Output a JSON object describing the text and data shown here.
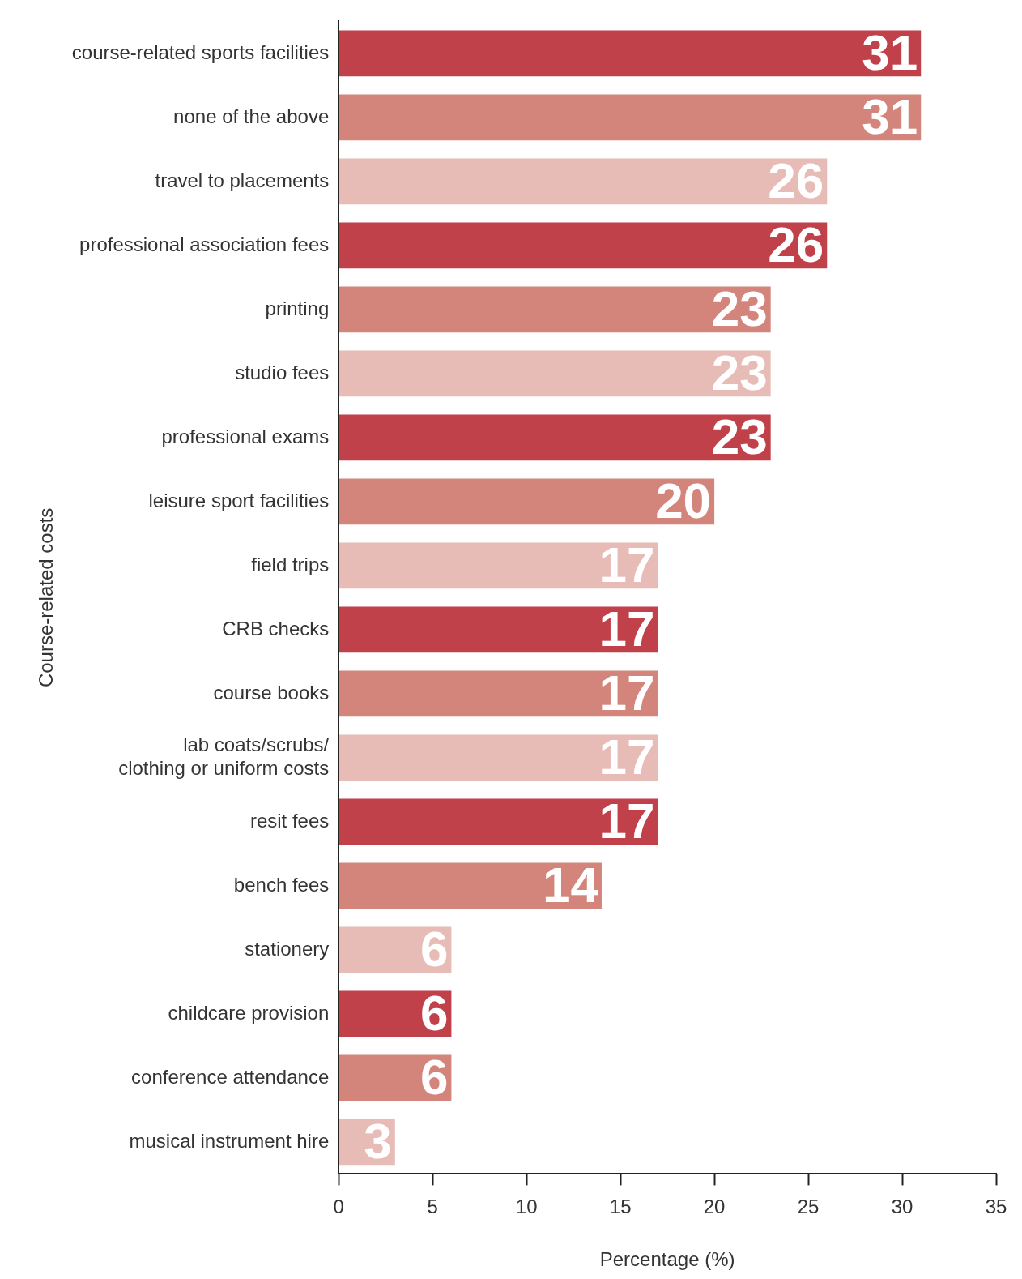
{
  "chart_data": {
    "type": "bar",
    "orientation": "horizontal",
    "xlabel": "Percentage (%)",
    "ylabel": "Course-related costs",
    "categories": [
      "course-related sports facilities",
      "none of the above",
      "travel to placements",
      "professional association fees",
      "printing",
      "studio fees",
      "professional exams",
      "leisure sport facilities",
      "field trips",
      "CRB checks",
      "course books",
      "lab coats/scrubs/\nclothing or uniform costs",
      "resit fees",
      "bench fees",
      "stationery",
      "childcare provision",
      "conference attendance",
      "musical instrument hire"
    ],
    "values": [
      31,
      31,
      26,
      26,
      23,
      23,
      23,
      20,
      17,
      17,
      17,
      17,
      17,
      14,
      6,
      6,
      6,
      3
    ],
    "colors": [
      "#c1414a",
      "#d4857b",
      "#e8bcb6",
      "#c1414a",
      "#d4857b",
      "#e8bcb6",
      "#c1414a",
      "#d4857b",
      "#e8bcb6",
      "#c1414a",
      "#d4857b",
      "#e8bcb6",
      "#c1414a",
      "#d4857b",
      "#e8bcb6",
      "#c1414a",
      "#d4857b",
      "#e8bcb6"
    ],
    "xlim": [
      0,
      35
    ],
    "xticks": [
      0,
      5,
      10,
      15,
      20,
      25,
      30,
      35
    ],
    "data_labels": true,
    "grid": false,
    "legend": false
  }
}
